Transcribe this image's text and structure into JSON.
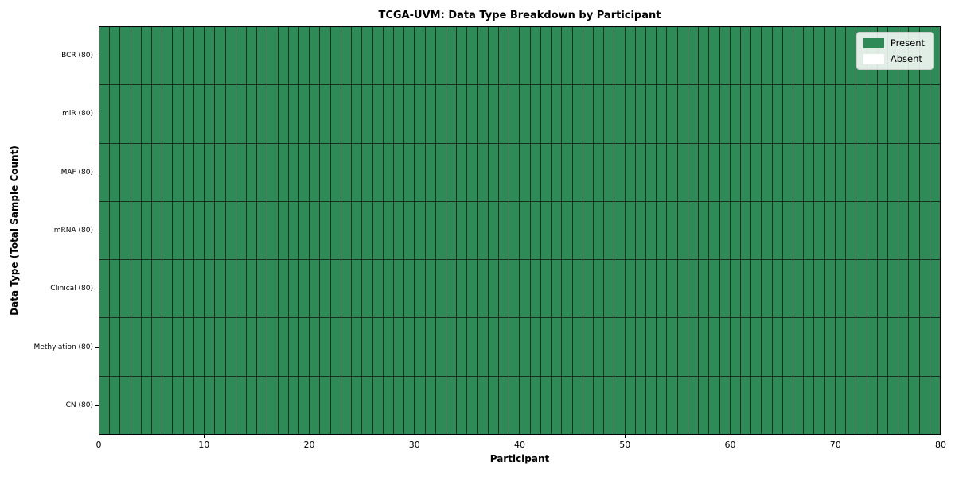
{
  "chart_data": {
    "type": "heatmap",
    "title": "TCGA-UVM: Data Type Breakdown by Participant",
    "xlabel": "Participant",
    "ylabel": "Data Type (Total Sample Count)",
    "rows": [
      {
        "label": "BCR (80)",
        "present_count": 80
      },
      {
        "label": "miR (80)",
        "present_count": 80
      },
      {
        "label": "MAF (80)",
        "present_count": 80
      },
      {
        "label": "mRNA (80)",
        "present_count": 80
      },
      {
        "label": "Clinical (80)",
        "present_count": 80
      },
      {
        "label": "Methylation (80)",
        "present_count": 80
      },
      {
        "label": "CN (80)",
        "present_count": 80
      }
    ],
    "n_participants": 80,
    "xlim": [
      0,
      80
    ],
    "x_ticks": [
      0,
      10,
      20,
      30,
      40,
      50,
      60,
      70,
      80
    ],
    "grid": true,
    "colors": {
      "present": "#2E8B57",
      "absent": "#FFFFFF",
      "cell_edge": "#16301f",
      "spine": "#000000"
    },
    "legend": {
      "position": "upper right",
      "items": [
        {
          "label": "Present",
          "color": "#2E8B57"
        },
        {
          "label": "Absent",
          "color": "#FFFFFF"
        }
      ]
    }
  }
}
